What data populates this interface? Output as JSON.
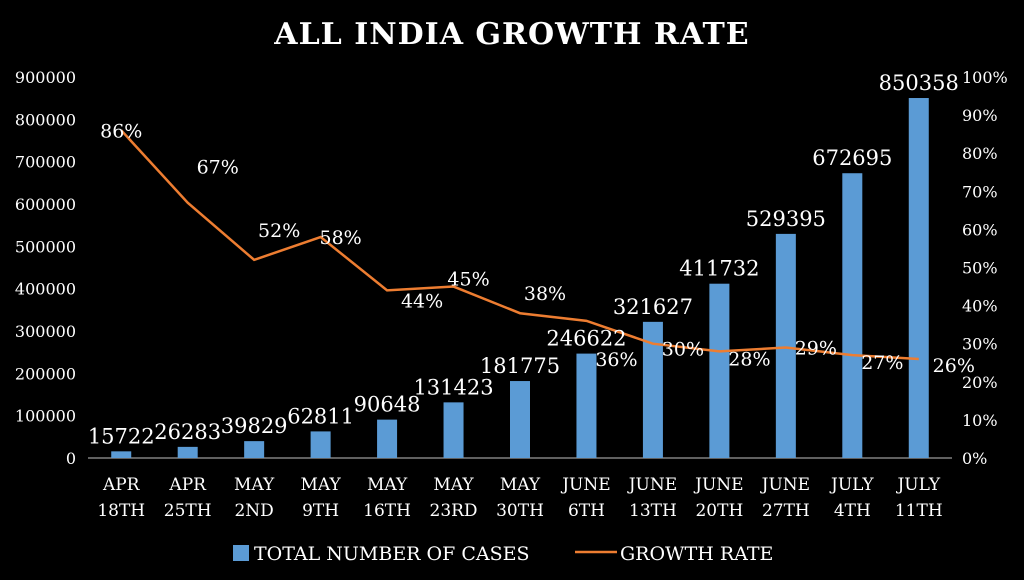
{
  "chart_data": {
    "type": "bar+line",
    "title": "ALL INDIA GROWTH RATE",
    "categories": [
      [
        "APR",
        "18TH"
      ],
      [
        "APR",
        "25TH"
      ],
      [
        "MAY",
        "2ND"
      ],
      [
        "MAY",
        "9TH"
      ],
      [
        "MAY",
        "16TH"
      ],
      [
        "MAY",
        "23RD"
      ],
      [
        "MAY",
        "30TH"
      ],
      [
        "JUNE",
        "6TH"
      ],
      [
        "JUNE",
        "13TH"
      ],
      [
        "JUNE",
        "20TH"
      ],
      [
        "JUNE",
        "27TH"
      ],
      [
        "JULY",
        "4TH"
      ],
      [
        "JULY",
        "11TH"
      ]
    ],
    "series": [
      {
        "name": "TOTAL NUMBER OF CASES",
        "type": "bar",
        "axis": "left",
        "color": "#5b9bd5",
        "values": [
          15722,
          26283,
          39829,
          62811,
          90648,
          131423,
          181775,
          246622,
          321627,
          411732,
          529395,
          672695,
          850358
        ]
      },
      {
        "name": "GROWTH RATE",
        "type": "line",
        "axis": "right",
        "color": "#ed7d31",
        "values": [
          86,
          67,
          52,
          58,
          44,
          45,
          38,
          36,
          30,
          28,
          29,
          27,
          26
        ],
        "labels": [
          "86%",
          "67%",
          "52%",
          "58%",
          "44%",
          "45%",
          "38%",
          "36%",
          "30%",
          "28%",
          "29%",
          "27%",
          "26%"
        ]
      }
    ],
    "y_left": {
      "min": 0,
      "max": 900000,
      "ticks": [
        "0",
        "100000",
        "200000",
        "300000",
        "400000",
        "500000",
        "600000",
        "700000",
        "800000",
        "900000"
      ]
    },
    "y_right": {
      "min": 0,
      "max": 100,
      "ticks": [
        "0%",
        "10%",
        "20%",
        "30%",
        "40%",
        "50%",
        "60%",
        "70%",
        "80%",
        "90%",
        "100%"
      ]
    },
    "grid": false,
    "legend": "bottom"
  }
}
